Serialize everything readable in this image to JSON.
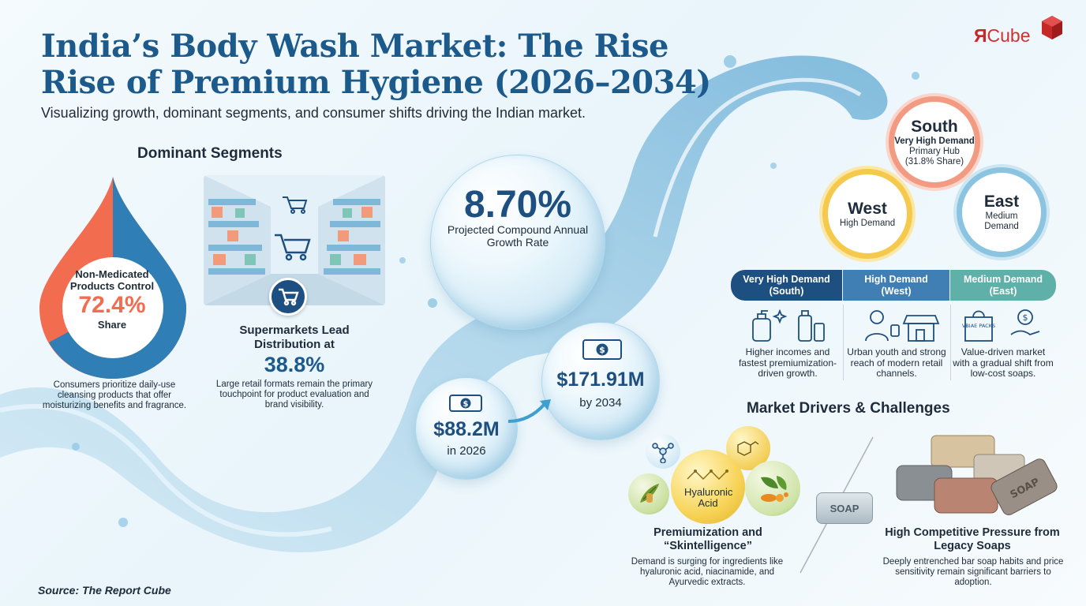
{
  "header": {
    "title_line1": "India’s Body Wash Market: The Rise",
    "title_line2": "Rise of Premium Hygiene (2026–2034)",
    "subtitle": "Visualizing growth, dominant segments, and consumer shifts driving the Indian market."
  },
  "logo": {
    "text_r": "Я",
    "text_cube": "Cube",
    "color": "#c62828"
  },
  "segments": {
    "heading": "Dominant Segments",
    "non_medicated": {
      "label": "Non-Medicated Products Control",
      "value": "72.4%",
      "share_label": "Share",
      "share_fraction": 0.724,
      "description": "Consumers prioritize daily-use cleansing products that offer moisturizing benefits and fragrance."
    },
    "supermarkets": {
      "title": "Supermarkets Lead Distribution at",
      "value": "38.8%",
      "description": "Large retail formats remain the primary touchpoint for product evaluation and brand visibility."
    }
  },
  "growth": {
    "cagr_value": "8.70%",
    "cagr_label": "Projected Compound Annual Growth Rate",
    "value_2026": "$88.2M",
    "year_2026": "in 2026",
    "value_2034": "$171.91M",
    "year_2034": "by 2034"
  },
  "regions": {
    "south": {
      "name": "South",
      "demand": "Very High Demand",
      "hub": "Primary Hub",
      "share": "(31.8% Share)",
      "color": "#f39a82"
    },
    "west": {
      "name": "West",
      "demand": "High Demand",
      "color": "#f4c94c"
    },
    "east": {
      "name": "East",
      "demand": "Medium Demand",
      "color": "#8bc4e0"
    },
    "table": [
      {
        "tab_line1": "Very High Demand",
        "tab_line2": "(South)",
        "desc": "Higher incomes and fastest premiumization-driven growth."
      },
      {
        "tab_line1": "High Demand",
        "tab_line2": "(West)",
        "desc": "Urban youth and strong reach of modern retail channels."
      },
      {
        "tab_line1": "Medium Demand",
        "tab_line2": "(East)",
        "desc": "Value-driven market with a gradual shift from low-cost soaps."
      }
    ],
    "package_label": "VBIAE PACKS"
  },
  "drivers": {
    "heading": "Market Drivers & Challenges",
    "premium": {
      "orb_label": "Hyaluronic Acid",
      "title": "Premiumization and “Skintelligence”",
      "desc": "Demand is surging for ingredients like hyaluronic acid, niacinamide, and Ayurvedic extracts."
    },
    "competition": {
      "soap_label": "SOAP",
      "brick_label": "SOAP",
      "title": "High Competitive Pressure from Legacy Soaps",
      "desc": "Deeply entrenched bar soap habits and price sensitivity remain significant barriers to adoption."
    }
  },
  "source": "Source: The Report Cube"
}
